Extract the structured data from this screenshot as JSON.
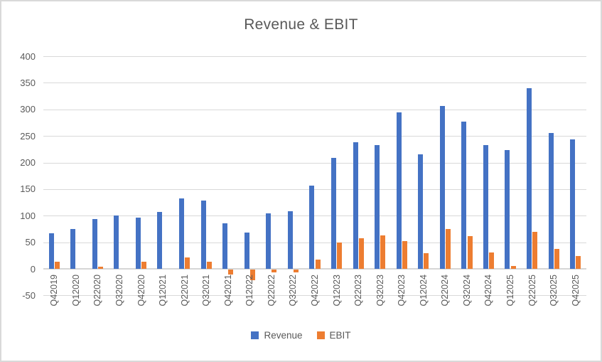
{
  "title": "Revenue & EBIT",
  "colors": {
    "revenue": "#4472C4",
    "ebit": "#ED7D31",
    "gridline": "#D9D9D9",
    "text": "#595959"
  },
  "chart_data": {
    "type": "bar",
    "title": "Revenue & EBIT",
    "categories": [
      "Q42019",
      "Q12020",
      "Q22020",
      "Q32020",
      "Q42020",
      "Q12021",
      "Q22021",
      "Q32021",
      "Q42021",
      "Q12022",
      "Q22022",
      "Q32022",
      "Q42022",
      "Q12023",
      "Q22023",
      "Q32023",
      "Q42023",
      "Q12024",
      "Q22024",
      "Q32024",
      "Q42024",
      "Q12025",
      "Q22025",
      "Q32025",
      "Q42025"
    ],
    "series": [
      {
        "name": "Revenue",
        "color": "#4472C4",
        "values": [
          67,
          75,
          94,
          101,
          96,
          107,
          133,
          129,
          86,
          68,
          105,
          109,
          156,
          209,
          238,
          233,
          294,
          215,
          307,
          277,
          233,
          224,
          340,
          256,
          244
        ]
      },
      {
        "name": "EBIT",
        "color": "#ED7D31",
        "values": [
          13,
          0,
          4,
          0,
          13,
          0,
          21,
          14,
          -10,
          -20,
          -6,
          -6,
          17,
          50,
          58,
          63,
          52,
          30,
          75,
          62,
          31,
          6,
          70,
          38,
          24
        ]
      }
    ],
    "xlabel": "",
    "ylabel": "",
    "ylim": [
      -50,
      400
    ],
    "yticks": [
      400,
      350,
      300,
      250,
      200,
      150,
      100,
      50,
      0,
      -50
    ],
    "grid": true,
    "legend_position": "bottom"
  }
}
